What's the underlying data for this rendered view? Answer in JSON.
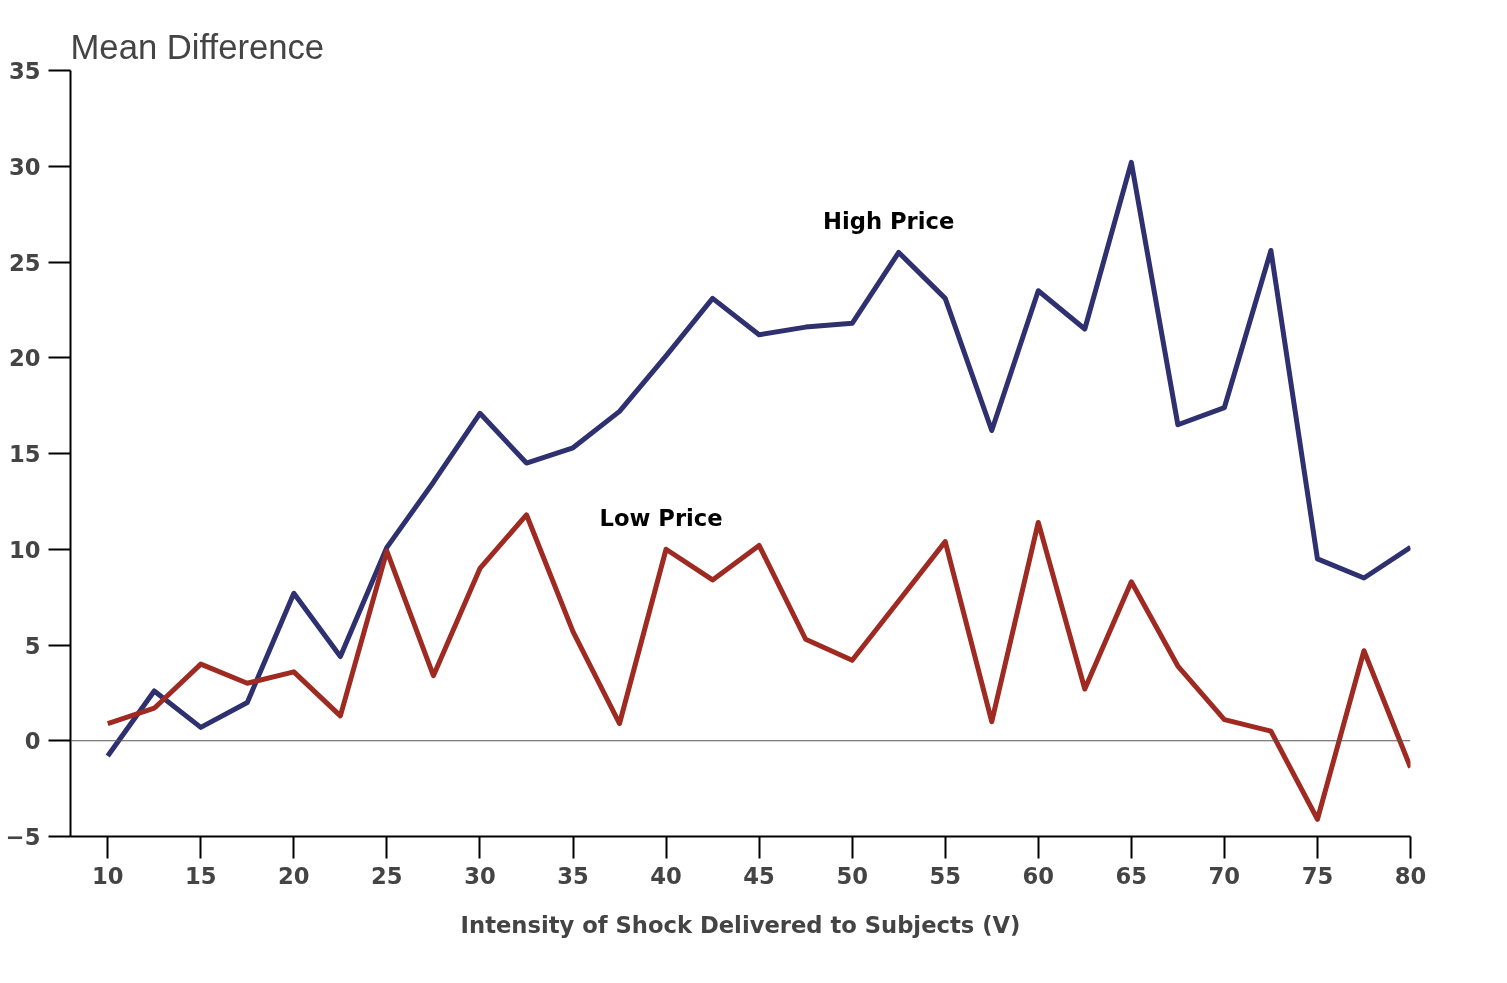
{
  "chart_data": {
    "type": "line",
    "title": "Mean Difference",
    "xlabel": "Intensity of Shock Delivered to Subjects (V)",
    "x": [
      10,
      12.5,
      15,
      17.5,
      20,
      22.5,
      25,
      27.5,
      30,
      32.5,
      35,
      37.5,
      40,
      42.5,
      45,
      47.5,
      50,
      52.5,
      55,
      57.5,
      60,
      62.5,
      65,
      67.5,
      70,
      72.5,
      75,
      77.5,
      80
    ],
    "series": [
      {
        "name": "High Price",
        "color": "#2e3070",
        "values": [
          -0.8,
          2.6,
          0.7,
          2.0,
          7.7,
          4.4,
          10.1,
          13.5,
          17.1,
          14.5,
          15.3,
          17.2,
          20.1,
          23.1,
          21.2,
          21.6,
          21.8,
          25.5,
          23.1,
          16.2,
          23.5,
          21.5,
          30.2,
          16.5,
          17.4,
          25.6,
          9.5,
          8.5,
          10.1
        ]
      },
      {
        "name": "Low Price",
        "color": "#9e2a22",
        "values": [
          0.9,
          1.7,
          4.0,
          3.0,
          3.6,
          1.3,
          9.9,
          3.4,
          9.0,
          11.8,
          5.7,
          0.9,
          10.0,
          8.4,
          10.2,
          5.3,
          4.2,
          7.3,
          10.4,
          1.0,
          11.4,
          2.7,
          8.3,
          3.9,
          1.1,
          0.5,
          -4.1,
          4.7,
          -1.4
        ]
      }
    ],
    "xlim": [
      8,
      80
    ],
    "ylim": [
      -5,
      35
    ],
    "xticks": [
      10,
      15,
      20,
      25,
      30,
      35,
      40,
      45,
      50,
      55,
      60,
      65,
      70,
      75,
      80
    ],
    "yticks": [
      -5,
      0,
      5,
      10,
      15,
      20,
      25,
      30,
      35
    ],
    "ref_lines": [
      {
        "axis": "y",
        "value": 0,
        "color": "#555555"
      }
    ],
    "grid": false,
    "marker": "none",
    "line_style": "solid"
  }
}
